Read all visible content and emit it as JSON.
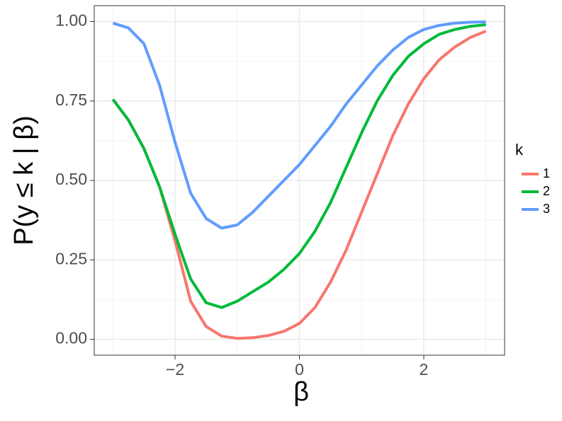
{
  "chart_data": {
    "type": "line",
    "x_label": "β",
    "y_label": "P(y ≤ k | β)",
    "x": [
      -3,
      -2.75,
      -2.5,
      -2.25,
      -2,
      -1.75,
      -1.5,
      -1.25,
      -1,
      -0.75,
      -0.5,
      -0.25,
      0,
      0.25,
      0.5,
      0.75,
      1,
      1.25,
      1.5,
      1.75,
      2,
      2.25,
      2.5,
      2.75,
      3
    ],
    "series": [
      {
        "name": "1",
        "color": "#F8766D",
        "values": [
          0.755,
          0.69,
          0.6,
          0.48,
          0.31,
          0.12,
          0.04,
          0.01,
          0.003,
          0.005,
          0.012,
          0.025,
          0.05,
          0.1,
          0.18,
          0.28,
          0.4,
          0.52,
          0.64,
          0.74,
          0.82,
          0.88,
          0.92,
          0.95,
          0.97
        ]
      },
      {
        "name": "2",
        "color": "#00BA38",
        "values": [
          0.755,
          0.69,
          0.6,
          0.48,
          0.33,
          0.19,
          0.115,
          0.1,
          0.12,
          0.15,
          0.18,
          0.22,
          0.27,
          0.34,
          0.43,
          0.54,
          0.65,
          0.75,
          0.83,
          0.89,
          0.93,
          0.96,
          0.975,
          0.985,
          0.99
        ]
      },
      {
        "name": "3",
        "color": "#619CFF",
        "values": [
          0.995,
          0.98,
          0.93,
          0.8,
          0.62,
          0.46,
          0.38,
          0.35,
          0.36,
          0.4,
          0.45,
          0.5,
          0.55,
          0.61,
          0.67,
          0.74,
          0.8,
          0.86,
          0.91,
          0.95,
          0.975,
          0.988,
          0.995,
          0.998,
          0.999
        ]
      }
    ],
    "legend_title": "k",
    "xlim": [
      -3.3,
      3.3
    ],
    "xticks": [
      {
        "value": -2,
        "label": "−2"
      },
      0,
      2
    ],
    "ylim": [
      -0.05,
      1.05
    ],
    "yticks": [
      {
        "value": 0,
        "label": "0.00"
      },
      {
        "value": 0.25,
        "label": "0.25"
      },
      {
        "value": 0.5,
        "label": "0.50"
      },
      {
        "value": 0.75,
        "label": "0.75"
      },
      {
        "value": 1,
        "label": "1.00"
      }
    ],
    "grid": true,
    "minor_grid": true,
    "legend": "right"
  }
}
